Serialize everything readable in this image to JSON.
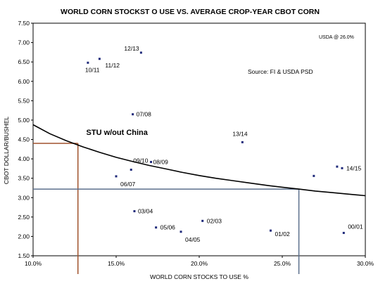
{
  "chart_data": {
    "type": "scatter",
    "title": "WORLD CORN STOCKST O USE VS. AVERAGE CROP-YEAR CBOT CORN",
    "xlabel": "WORLD CORN STOCKS TO USE %",
    "ylabel": "CBOT DOLLAR/BUSHEL",
    "xlim": [
      10.0,
      30.0
    ],
    "ylim": [
      1.5,
      7.5
    ],
    "x_ticks": [
      "10.0%",
      "15.0%",
      "20.0%",
      "25.0%",
      "30.0%"
    ],
    "y_ticks": [
      "1.50",
      "2.00",
      "2.50",
      "3.00",
      "3.50",
      "4.00",
      "4.50",
      "5.00",
      "5.50",
      "6.00",
      "6.50",
      "7.00",
      "7.50"
    ],
    "legend": "none",
    "grid": false,
    "series": [
      {
        "points": [
          {
            "x": 16.5,
            "y": 6.74,
            "label": "12/13"
          },
          {
            "x": 14.0,
            "y": 6.58,
            "label": "11/12"
          },
          {
            "x": 13.3,
            "y": 6.48,
            "label": "10/11"
          },
          {
            "x": 16.0,
            "y": 5.15,
            "label": "07/08"
          },
          {
            "x": 22.6,
            "y": 4.43,
            "label": "13/14"
          },
          {
            "x": 15.9,
            "y": 3.72,
            "label": "09/10"
          },
          {
            "x": 17.1,
            "y": 3.92,
            "label": "08/09"
          },
          {
            "x": 15.0,
            "y": 3.55,
            "label": "06/07"
          },
          {
            "x": 28.6,
            "y": 3.76,
            "label": "14/15"
          },
          {
            "x": 28.3,
            "y": 3.8,
            "label": ""
          },
          {
            "x": 26.9,
            "y": 3.56,
            "label": ""
          },
          {
            "x": 16.1,
            "y": 2.65,
            "label": "03/04"
          },
          {
            "x": 20.2,
            "y": 2.4,
            "label": "02/03"
          },
          {
            "x": 17.4,
            "y": 2.23,
            "label": "05/06"
          },
          {
            "x": 18.9,
            "y": 2.12,
            "label": "04/05"
          },
          {
            "x": 24.3,
            "y": 2.15,
            "label": "01/02"
          },
          {
            "x": 28.7,
            "y": 2.09,
            "label": "00/01"
          }
        ]
      }
    ],
    "trendline": [
      {
        "x": 10.0,
        "y": 4.88
      },
      {
        "x": 11.0,
        "y": 4.65
      },
      {
        "x": 12.0,
        "y": 4.47
      },
      {
        "x": 13.0,
        "y": 4.31
      },
      {
        "x": 14.0,
        "y": 4.17
      },
      {
        "x": 15.0,
        "y": 4.04
      },
      {
        "x": 16.0,
        "y": 3.93
      },
      {
        "x": 17.0,
        "y": 3.83
      },
      {
        "x": 18.0,
        "y": 3.74
      },
      {
        "x": 19.0,
        "y": 3.65
      },
      {
        "x": 20.0,
        "y": 3.57
      },
      {
        "x": 21.0,
        "y": 3.5
      },
      {
        "x": 22.0,
        "y": 3.44
      },
      {
        "x": 23.0,
        "y": 3.38
      },
      {
        "x": 24.0,
        "y": 3.32
      },
      {
        "x": 25.0,
        "y": 3.27
      },
      {
        "x": 26.0,
        "y": 3.22
      },
      {
        "x": 27.0,
        "y": 3.17
      },
      {
        "x": 28.0,
        "y": 3.13
      },
      {
        "x": 29.0,
        "y": 3.09
      },
      {
        "x": 30.0,
        "y": 3.05
      }
    ],
    "ref_lines": [
      {
        "x": 12.7,
        "y": 4.4,
        "color": "#a0522d"
      },
      {
        "x": 26.0,
        "y": 3.22,
        "color": "#5b6f8c"
      }
    ],
    "annotation_stu": "STU w/out China",
    "annotation_stu_at": {
      "x": 13.2,
      "y": 4.62
    },
    "note_usda": "USDA @ 26.0%",
    "source": "Source: FI & USDA PSD"
  }
}
